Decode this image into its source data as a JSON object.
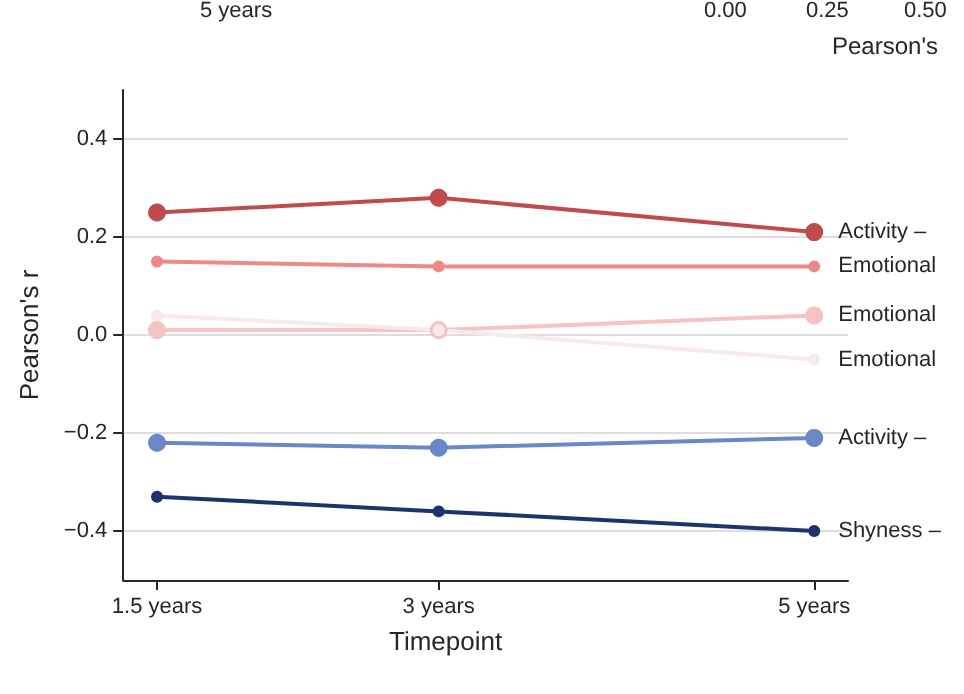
{
  "chart_data": {
    "type": "line",
    "xlabel": "Timepoint",
    "ylabel": "Pearson's r",
    "x": [
      1.5,
      3,
      5
    ],
    "xlim": [
      1.32,
      5.18
    ],
    "xticks": [
      {
        "value": 1.5,
        "label": "1.5 years"
      },
      {
        "value": 3,
        "label": "3 years"
      },
      {
        "value": 5,
        "label": "5 years"
      }
    ],
    "ylim": [
      -0.5,
      0.5
    ],
    "yticks": [
      {
        "value": -0.4,
        "label": "−0.4"
      },
      {
        "value": -0.2,
        "label": "−0.2"
      },
      {
        "value": 0,
        "label": "0.0"
      },
      {
        "value": 0.2,
        "label": "0.2"
      },
      {
        "value": 0.4,
        "label": "0.4"
      }
    ],
    "series": [
      {
        "name": "Activity –",
        "color": "#bf4b4b",
        "values": [
          0.25,
          0.28,
          0.21
        ]
      },
      {
        "name": "Emotional",
        "color": "#eb8b87",
        "values": [
          0.15,
          0.14,
          0.14
        ]
      },
      {
        "name": "Emotional",
        "color": "#f5c3c1",
        "values": [
          0.01,
          0.01,
          0.04
        ]
      },
      {
        "name": "Emotional",
        "color": "#f7eaea",
        "values": [
          0.04,
          0.01,
          -0.05
        ]
      },
      {
        "name": "Activity –",
        "color": "#6a87c8",
        "values": [
          -0.22,
          -0.23,
          -0.21
        ]
      },
      {
        "name": "Shyness –",
        "color": "#1d336b",
        "values": [
          -0.33,
          -0.36,
          -0.4
        ]
      }
    ],
    "annotations": [
      "5 years",
      "0.00",
      "0.25",
      "0.50",
      "Pearson's"
    ],
    "grid": "y",
    "legend": false,
    "marker": "circle",
    "line_style": "solid"
  }
}
